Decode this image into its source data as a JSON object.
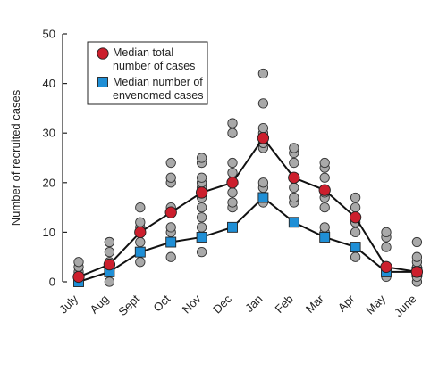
{
  "chart_data": {
    "type": "scatter",
    "categories": [
      "July",
      "Aug",
      "Sept",
      "Oct",
      "Nov",
      "Dec",
      "Jan",
      "Feb",
      "Mar",
      "Apr",
      "May",
      "June"
    ],
    "ylabel": "Number of recruited cases",
    "xlabel": "",
    "ylim": [
      0,
      50
    ],
    "yticks": [
      0,
      10,
      20,
      30,
      40,
      50
    ],
    "grid": false,
    "legend_position": "top-left",
    "colors": {
      "total": "#cc1f2d",
      "envenomed": "#1f8fd6",
      "individual": "#a9a9a9",
      "line": "#111111"
    },
    "individual_points": [
      [
        0,
        1,
        2,
        3,
        4
      ],
      [
        0,
        2,
        3,
        4,
        6,
        8,
        8
      ],
      [
        4,
        6,
        8,
        10,
        11,
        12,
        15
      ],
      [
        5,
        8,
        10,
        11,
        14,
        15,
        20,
        21,
        24
      ],
      [
        6,
        9,
        11,
        13,
        15,
        17,
        18,
        19,
        20,
        21,
        24,
        25
      ],
      [
        11,
        15,
        16,
        18,
        20,
        22,
        24,
        30,
        32
      ],
      [
        16,
        17,
        19,
        20,
        27,
        28,
        29,
        30,
        31,
        36,
        42
      ],
      [
        12,
        16,
        17,
        19,
        21,
        24,
        26,
        27
      ],
      [
        9,
        10,
        11,
        15,
        17,
        18,
        21,
        23,
        24
      ],
      [
        5,
        7,
        10,
        12,
        13,
        15,
        17
      ],
      [
        1,
        2,
        3,
        7,
        9,
        10
      ],
      [
        0,
        1,
        2,
        3,
        4,
        5,
        8
      ]
    ],
    "series": [
      {
        "name": "Median total number of cases",
        "values": [
          1,
          3.5,
          10,
          14,
          18,
          20,
          29,
          21,
          18.5,
          13,
          3,
          2
        ],
        "marker": "circle"
      },
      {
        "name": "Median number of envenomed cases",
        "values": [
          0,
          2,
          6,
          8,
          9,
          11,
          17,
          12,
          9,
          7,
          2,
          2
        ],
        "marker": "square"
      }
    ],
    "legend": [
      {
        "line1": "Median total",
        "line2": "number of cases",
        "marker": "circle"
      },
      {
        "line1": "Median number of",
        "line2": "envenomed cases",
        "marker": "square"
      }
    ]
  }
}
